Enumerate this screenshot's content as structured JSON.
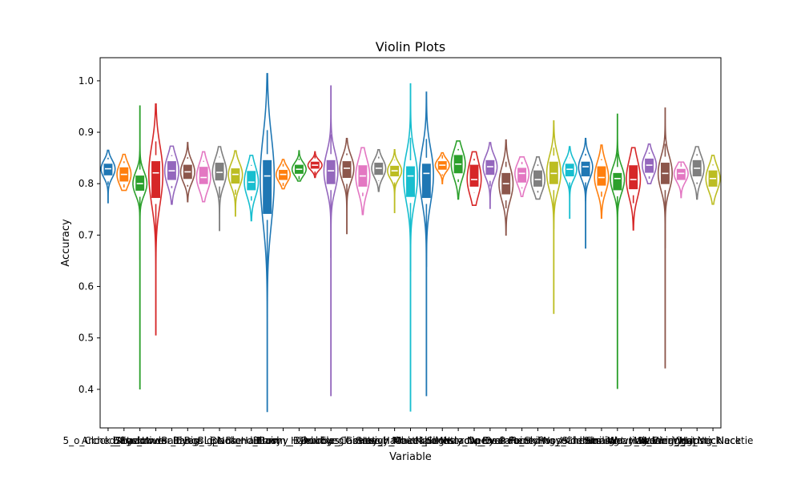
{
  "chart_data": {
    "type": "violin",
    "title": "Violin Plots",
    "xlabel": "Variable",
    "ylabel": "Accuracy",
    "ylim": [
      0.325,
      1.045
    ],
    "y_ticks": [
      "0.4",
      "0.5",
      "0.6",
      "0.7",
      "0.8",
      "0.9",
      "1.0"
    ],
    "grid": false,
    "legend": "none",
    "series": [
      {
        "name": "5_o_Clock_Shadow",
        "color": "#1f77b4",
        "min": 0.763,
        "q1": 0.817,
        "median": 0.829,
        "q3": 0.838,
        "max": 0.865
      },
      {
        "name": "Arched_Eyebrows",
        "color": "#ff7f0e",
        "min": 0.787,
        "q1": 0.805,
        "median": 0.818,
        "q3": 0.831,
        "max": 0.857
      },
      {
        "name": "Attractive",
        "color": "#2ca02c",
        "min": 0.401,
        "q1": 0.787,
        "median": 0.8,
        "q3": 0.815,
        "max": 0.951
      },
      {
        "name": "Bags_Under_Eyes",
        "color": "#d62728",
        "min": 0.506,
        "q1": 0.773,
        "median": 0.821,
        "q3": 0.843,
        "max": 0.955
      },
      {
        "name": "Bald",
        "color": "#9467bd",
        "min": 0.76,
        "q1": 0.808,
        "median": 0.825,
        "q3": 0.843,
        "max": 0.873
      },
      {
        "name": "Bangs",
        "color": "#8c564b",
        "min": 0.765,
        "q1": 0.81,
        "median": 0.823,
        "q3": 0.836,
        "max": 0.88
      },
      {
        "name": "Big_Lips",
        "color": "#e377c2",
        "min": 0.765,
        "q1": 0.8,
        "median": 0.812,
        "q3": 0.832,
        "max": 0.862
      },
      {
        "name": "Big_Nose",
        "color": "#7f7f7f",
        "min": 0.709,
        "q1": 0.807,
        "median": 0.822,
        "q3": 0.84,
        "max": 0.872
      },
      {
        "name": "Black_Hair",
        "color": "#bcbd22",
        "min": 0.737,
        "q1": 0.801,
        "median": 0.818,
        "q3": 0.829,
        "max": 0.864
      },
      {
        "name": "Blond_Hair",
        "color": "#17becf",
        "min": 0.728,
        "q1": 0.788,
        "median": 0.803,
        "q3": 0.824,
        "max": 0.855
      },
      {
        "name": "Blurry",
        "color": "#1f77b4",
        "min": 0.357,
        "q1": 0.742,
        "median": 0.815,
        "q3": 0.845,
        "max": 1.014
      },
      {
        "name": "Brown_Hair",
        "color": "#ff7f0e",
        "min": 0.79,
        "q1": 0.808,
        "median": 0.818,
        "q3": 0.826,
        "max": 0.847
      },
      {
        "name": "Bushy_Eyebrows",
        "color": "#2ca02c",
        "min": 0.805,
        "q1": 0.82,
        "median": 0.828,
        "q3": 0.836,
        "max": 0.864
      },
      {
        "name": "Chubby",
        "color": "#d62728",
        "min": 0.812,
        "q1": 0.83,
        "median": 0.836,
        "q3": 0.842,
        "max": 0.862
      },
      {
        "name": "Double_Chin",
        "color": "#9467bd",
        "min": 0.388,
        "q1": 0.8,
        "median": 0.825,
        "q3": 0.845,
        "max": 0.99
      },
      {
        "name": "Eyeglasses",
        "color": "#8c564b",
        "min": 0.703,
        "q1": 0.812,
        "median": 0.83,
        "q3": 0.843,
        "max": 0.888
      },
      {
        "name": "Goatee",
        "color": "#e377c2",
        "min": 0.74,
        "q1": 0.795,
        "median": 0.815,
        "q3": 0.835,
        "max": 0.87
      },
      {
        "name": "Gray_Hair",
        "color": "#7f7f7f",
        "min": 0.785,
        "q1": 0.818,
        "median": 0.83,
        "q3": 0.84,
        "max": 0.866
      },
      {
        "name": "Heavy_Makeup",
        "color": "#bcbd22",
        "min": 0.744,
        "q1": 0.815,
        "median": 0.825,
        "q3": 0.834,
        "max": 0.866
      },
      {
        "name": "High_Cheekbones",
        "color": "#17becf",
        "min": 0.358,
        "q1": 0.775,
        "median": 0.815,
        "q3": 0.833,
        "max": 0.994
      },
      {
        "name": "Male",
        "color": "#1f77b4",
        "min": 0.388,
        "q1": 0.773,
        "median": 0.82,
        "q3": 0.838,
        "max": 0.978
      },
      {
        "name": "Mouth_Slightly_Open",
        "color": "#ff7f0e",
        "min": 0.8,
        "q1": 0.828,
        "median": 0.836,
        "q3": 0.843,
        "max": 0.86
      },
      {
        "name": "Mustache",
        "color": "#2ca02c",
        "min": 0.77,
        "q1": 0.821,
        "median": 0.838,
        "q3": 0.855,
        "max": 0.883
      },
      {
        "name": "Narrow_Eyes",
        "color": "#d62728",
        "min": 0.758,
        "q1": 0.795,
        "median": 0.808,
        "q3": 0.836,
        "max": 0.862
      },
      {
        "name": "No_Beard",
        "color": "#9467bd",
        "min": 0.752,
        "q1": 0.818,
        "median": 0.833,
        "q3": 0.845,
        "max": 0.88
      },
      {
        "name": "Oval_Face",
        "color": "#8c564b",
        "min": 0.7,
        "q1": 0.78,
        "median": 0.8,
        "q3": 0.82,
        "max": 0.885
      },
      {
        "name": "Pale_Skin",
        "color": "#e377c2",
        "min": 0.775,
        "q1": 0.803,
        "median": 0.82,
        "q3": 0.83,
        "max": 0.852
      },
      {
        "name": "Pointy_Nose",
        "color": "#7f7f7f",
        "min": 0.77,
        "q1": 0.795,
        "median": 0.808,
        "q3": 0.825,
        "max": 0.852
      },
      {
        "name": "Receding_Hairline",
        "color": "#bcbd22",
        "min": 0.548,
        "q1": 0.8,
        "median": 0.82,
        "q3": 0.842,
        "max": 0.922
      },
      {
        "name": "Rosy_Cheeks",
        "color": "#17becf",
        "min": 0.733,
        "q1": 0.815,
        "median": 0.828,
        "q3": 0.838,
        "max": 0.872
      },
      {
        "name": "Sideburns",
        "color": "#1f77b4",
        "min": 0.675,
        "q1": 0.815,
        "median": 0.833,
        "q3": 0.842,
        "max": 0.888
      },
      {
        "name": "Smiling",
        "color": "#ff7f0e",
        "min": 0.733,
        "q1": 0.797,
        "median": 0.812,
        "q3": 0.833,
        "max": 0.875
      },
      {
        "name": "Straight_Hair",
        "color": "#2ca02c",
        "min": 0.402,
        "q1": 0.788,
        "median": 0.81,
        "q3": 0.82,
        "max": 0.935
      },
      {
        "name": "Wavy_Hair",
        "color": "#d62728",
        "min": 0.71,
        "q1": 0.79,
        "median": 0.808,
        "q3": 0.835,
        "max": 0.87
      },
      {
        "name": "Wearing_Earrings",
        "color": "#9467bd",
        "min": 0.8,
        "q1": 0.822,
        "median": 0.836,
        "q3": 0.848,
        "max": 0.877
      },
      {
        "name": "Wearing_Hat",
        "color": "#8c564b",
        "min": 0.442,
        "q1": 0.8,
        "median": 0.82,
        "q3": 0.84,
        "max": 0.947
      },
      {
        "name": "Wearing_Lipstick",
        "color": "#e377c2",
        "min": 0.773,
        "q1": 0.808,
        "median": 0.82,
        "q3": 0.828,
        "max": 0.842
      },
      {
        "name": "Wearing_Necklace",
        "color": "#7f7f7f",
        "min": 0.77,
        "q1": 0.815,
        "median": 0.83,
        "q3": 0.845,
        "max": 0.872
      },
      {
        "name": "Wearing_Necktie",
        "color": "#bcbd22",
        "min": 0.76,
        "q1": 0.795,
        "median": 0.81,
        "q3": 0.825,
        "max": 0.855
      }
    ]
  }
}
